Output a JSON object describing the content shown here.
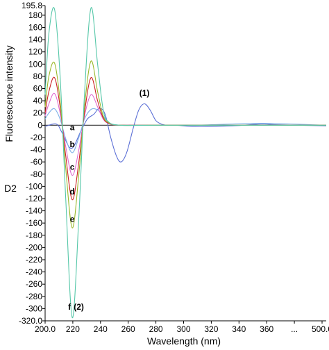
{
  "chart_data": {
    "type": "line",
    "ylabel": "Fluorescence intensity",
    "ylabel2": "D2",
    "xlabel": "Wavelength (nm)",
    "xlim": [
      200,
      500
    ],
    "ylim": [
      -320,
      195.8
    ],
    "x_ticks": [
      "200.0",
      "220",
      "240",
      "260",
      "280",
      "300",
      "320",
      "340",
      "360",
      "...",
      "500.0"
    ],
    "y_tick_values": [
      195.8,
      180,
      160,
      140,
      120,
      100,
      80,
      60,
      40,
      20,
      0,
      -20,
      -40,
      -60,
      -80,
      -100,
      -120,
      -140,
      -160,
      -180,
      -200,
      -220,
      -240,
      -260,
      -280,
      -300,
      -320
    ],
    "y_tick_labels": [
      "195.8",
      "180",
      "160",
      "140",
      "120",
      "100",
      "80",
      "60",
      "40",
      "20",
      "0",
      "-20",
      "-40",
      "-60",
      "-80",
      "-100",
      "-120",
      "-140",
      "-160",
      "-180",
      "-200",
      "-220",
      "-240",
      "-260",
      "-280",
      "-300",
      "-320.0"
    ],
    "series": [
      {
        "color": "#333333",
        "points": [
          [
            200,
            0
          ],
          [
            270,
            0
          ],
          [
            300,
            0
          ],
          [
            330,
            0
          ],
          [
            360,
            0
          ],
          [
            400,
            0
          ],
          [
            500,
            0
          ]
        ]
      },
      {
        "color": "#5b6fd6",
        "points": [
          [
            200,
            -2
          ],
          [
            212,
            2
          ],
          [
            218,
            -12
          ],
          [
            228,
            -38
          ],
          [
            238,
            -10
          ],
          [
            245,
            10
          ],
          [
            252,
            18
          ],
          [
            258,
            28
          ],
          [
            264,
            18
          ],
          [
            270,
            -20
          ],
          [
            276,
            -50
          ],
          [
            281,
            -60
          ],
          [
            287,
            -45
          ],
          [
            294,
            -5
          ],
          [
            300,
            25
          ],
          [
            306,
            35
          ],
          [
            312,
            25
          ],
          [
            318,
            8
          ],
          [
            324,
            2
          ],
          [
            330,
            0
          ],
          [
            340,
            0
          ],
          [
            360,
            -2
          ],
          [
            400,
            -1
          ],
          [
            430,
            2
          ],
          [
            445,
            1
          ],
          [
            470,
            0
          ],
          [
            500,
            -1
          ]
        ]
      },
      {
        "color": "#7fb0e8",
        "points": [
          [
            200,
            10
          ],
          [
            204,
            20
          ],
          [
            210,
            27
          ],
          [
            216,
            10
          ],
          [
            222,
            -22
          ],
          [
            229,
            -45
          ],
          [
            236,
            -20
          ],
          [
            242,
            10
          ],
          [
            249,
            26
          ],
          [
            256,
            25
          ],
          [
            262,
            15
          ],
          [
            268,
            4
          ],
          [
            280,
            0
          ],
          [
            300,
            0
          ],
          [
            320,
            0
          ],
          [
            360,
            0
          ],
          [
            430,
            3
          ],
          [
            500,
            0
          ]
        ]
      },
      {
        "color": "#e06bd0",
        "points": [
          [
            200,
            15
          ],
          [
            204,
            35
          ],
          [
            210,
            52
          ],
          [
            216,
            20
          ],
          [
            222,
            -35
          ],
          [
            229,
            -82
          ],
          [
            236,
            -40
          ],
          [
            242,
            15
          ],
          [
            249,
            50
          ],
          [
            256,
            30
          ],
          [
            262,
            10
          ],
          [
            268,
            3
          ],
          [
            280,
            0
          ],
          [
            320,
            0
          ],
          [
            500,
            0
          ]
        ]
      },
      {
        "color": "#cc2222",
        "points": [
          [
            200,
            20
          ],
          [
            204,
            55
          ],
          [
            210,
            78
          ],
          [
            216,
            30
          ],
          [
            222,
            -50
          ],
          [
            229,
            -122
          ],
          [
            236,
            -60
          ],
          [
            242,
            20
          ],
          [
            249,
            78
          ],
          [
            256,
            40
          ],
          [
            262,
            12
          ],
          [
            268,
            3
          ],
          [
            280,
            0
          ],
          [
            320,
            0
          ],
          [
            500,
            0
          ]
        ]
      },
      {
        "color": "#99b829",
        "points": [
          [
            200,
            30
          ],
          [
            204,
            80
          ],
          [
            210,
            102
          ],
          [
            216,
            40
          ],
          [
            222,
            -70
          ],
          [
            229,
            -168
          ],
          [
            236,
            -80
          ],
          [
            242,
            30
          ],
          [
            249,
            105
          ],
          [
            256,
            55
          ],
          [
            262,
            15
          ],
          [
            268,
            4
          ],
          [
            280,
            0
          ],
          [
            320,
            0
          ],
          [
            500,
            0
          ]
        ]
      },
      {
        "color": "#55c7a8",
        "points": [
          [
            200,
            50
          ],
          [
            204,
            150
          ],
          [
            210,
            190
          ],
          [
            216,
            80
          ],
          [
            222,
            -120
          ],
          [
            229,
            -315
          ],
          [
            236,
            -150
          ],
          [
            242,
            50
          ],
          [
            249,
            192
          ],
          [
            256,
            100
          ],
          [
            262,
            25
          ],
          [
            268,
            5
          ],
          [
            280,
            0
          ],
          [
            320,
            0
          ],
          [
            500,
            0
          ]
        ]
      }
    ],
    "annotations": [
      {
        "text": "(1)",
        "x": 306,
        "y": 48
      },
      {
        "text": "a",
        "x": 229,
        "y": -8
      },
      {
        "text": "b",
        "x": 229,
        "y": -36
      },
      {
        "text": "c",
        "x": 229,
        "y": -73
      },
      {
        "text": "d",
        "x": 229,
        "y": -113
      },
      {
        "text": "e",
        "x": 229,
        "y": -158
      },
      {
        "text": "f",
        "x": 226,
        "y": -302
      },
      {
        "text": "(2)",
        "x": 236,
        "y": -302
      }
    ]
  }
}
